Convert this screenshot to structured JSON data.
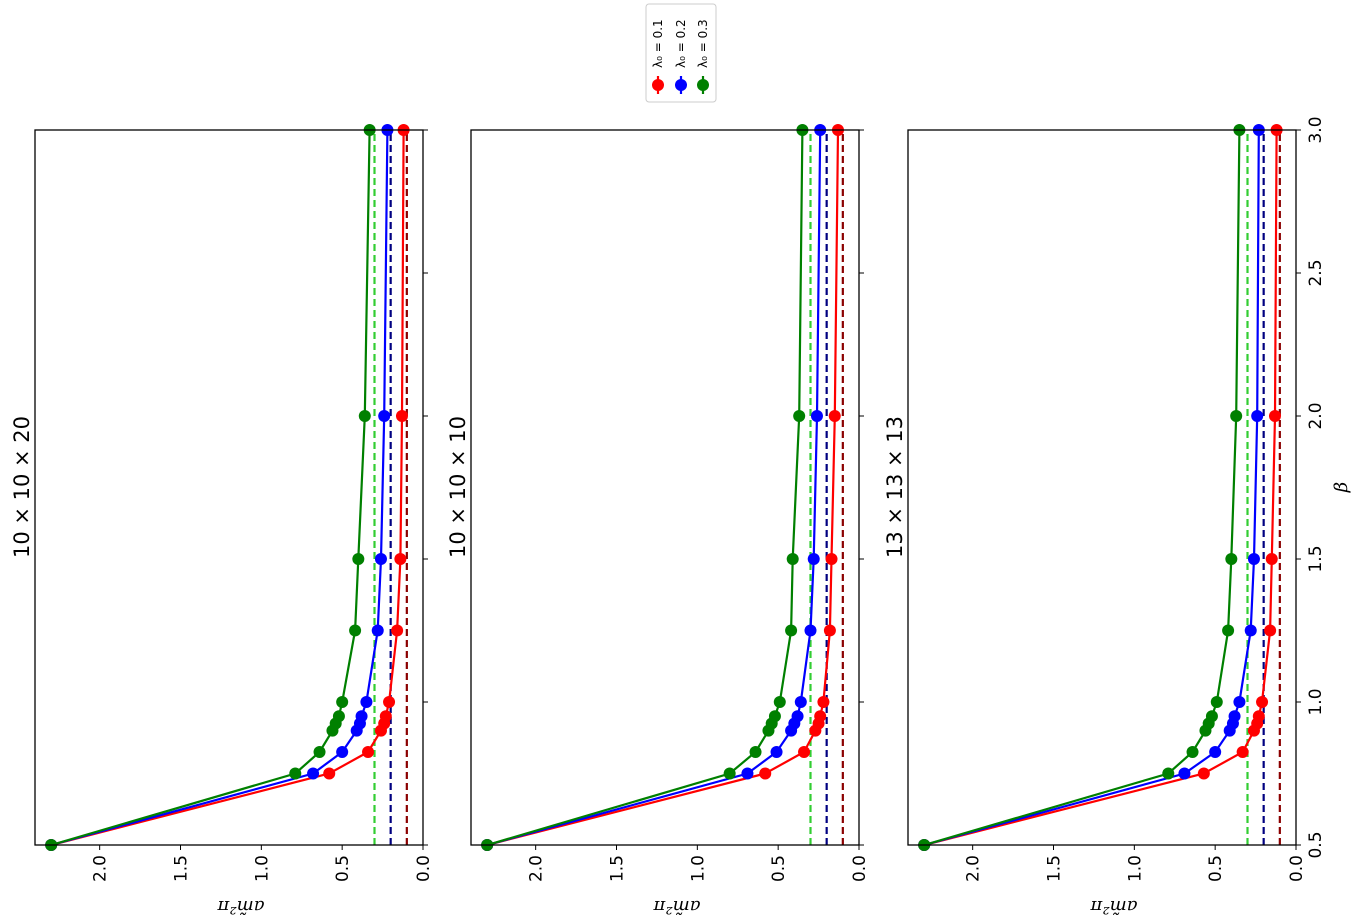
{
  "chart_data": [
    {
      "type": "line",
      "title": "10 × 10 × 20",
      "xlabel": "β",
      "ylabel": "am̃²π",
      "xlim": [
        0.5,
        3.0
      ],
      "ylim": [
        2.4,
        0.0
      ],
      "x_ticks": [
        "0.5",
        "1.0",
        "1.5",
        "2.0",
        "2.5",
        "3.0"
      ],
      "y_ticks": [
        "2.0",
        "1.5",
        "1.0",
        "0.5",
        "0.0"
      ],
      "x": [
        0.5,
        0.75,
        0.825,
        0.9,
        0.925,
        0.95,
        1.0,
        1.25,
        1.5,
        2.0,
        3.0
      ],
      "series": [
        {
          "name": "λ₀ = 0.1",
          "color": "#ff0000",
          "values": [
            2.3,
            0.58,
            0.34,
            0.26,
            0.24,
            0.23,
            0.21,
            0.16,
            0.14,
            0.13,
            0.12
          ]
        },
        {
          "name": "λ₀ = 0.2",
          "color": "#0000ff",
          "values": [
            2.3,
            0.68,
            0.5,
            0.41,
            0.39,
            0.38,
            0.35,
            0.28,
            0.26,
            0.24,
            0.22
          ]
        },
        {
          "name": "λ₀ = 0.3",
          "color": "#008000",
          "values": [
            2.3,
            0.79,
            0.64,
            0.56,
            0.54,
            0.52,
            0.5,
            0.42,
            0.4,
            0.36,
            0.33
          ]
        }
      ],
      "hlines": [
        {
          "value": 0.1,
          "color": "#8b0000"
        },
        {
          "value": 0.2,
          "color": "#000080"
        },
        {
          "value": 0.3,
          "color": "#32cd32"
        }
      ]
    },
    {
      "type": "line",
      "title": "10 × 10 × 10",
      "xlabel": "β",
      "ylabel": "am̃²π",
      "xlim": [
        0.5,
        3.0
      ],
      "ylim": [
        2.4,
        0.0
      ],
      "x_ticks": [
        "0.5",
        "1.0",
        "1.5",
        "2.0",
        "2.5",
        "3.0"
      ],
      "y_ticks": [
        "2.0",
        "1.5",
        "1.0",
        "0.5",
        "0.0"
      ],
      "x": [
        0.5,
        0.75,
        0.825,
        0.9,
        0.925,
        0.95,
        1.0,
        1.25,
        1.5,
        2.0,
        3.0
      ],
      "series": [
        {
          "name": "λ₀ = 0.1",
          "color": "#ff0000",
          "values": [
            2.3,
            0.58,
            0.34,
            0.27,
            0.25,
            0.24,
            0.22,
            0.18,
            0.17,
            0.15,
            0.13
          ]
        },
        {
          "name": "λ₀ = 0.2",
          "color": "#0000ff",
          "values": [
            2.3,
            0.69,
            0.51,
            0.42,
            0.4,
            0.38,
            0.36,
            0.3,
            0.28,
            0.26,
            0.24
          ]
        },
        {
          "name": "λ₀ = 0.3",
          "color": "#008000",
          "values": [
            2.3,
            0.8,
            0.64,
            0.56,
            0.54,
            0.52,
            0.49,
            0.42,
            0.41,
            0.37,
            0.35
          ]
        }
      ],
      "hlines": [
        {
          "value": 0.1,
          "color": "#8b0000"
        },
        {
          "value": 0.2,
          "color": "#000080"
        },
        {
          "value": 0.3,
          "color": "#32cd32"
        }
      ]
    },
    {
      "type": "line",
      "title": "13 × 13 × 13",
      "xlabel": "β",
      "ylabel": "am̃²π",
      "xlim": [
        0.5,
        3.0
      ],
      "ylim": [
        2.4,
        0.0
      ],
      "x_ticks": [
        "0.5",
        "1.0",
        "1.5",
        "2.0",
        "2.5",
        "3.0"
      ],
      "y_ticks": [
        "2.0",
        "1.5",
        "1.0",
        "0.5",
        "0.0"
      ],
      "x": [
        0.5,
        0.75,
        0.825,
        0.9,
        0.925,
        0.95,
        1.0,
        1.25,
        1.5,
        2.0,
        3.0
      ],
      "series": [
        {
          "name": "λ₀ = 0.1",
          "color": "#ff0000",
          "values": [
            2.3,
            0.57,
            0.33,
            0.26,
            0.24,
            0.23,
            0.21,
            0.16,
            0.15,
            0.13,
            0.12
          ]
        },
        {
          "name": "λ₀ = 0.2",
          "color": "#0000ff",
          "values": [
            2.3,
            0.69,
            0.5,
            0.41,
            0.39,
            0.38,
            0.35,
            0.28,
            0.26,
            0.24,
            0.23
          ]
        },
        {
          "name": "λ₀ = 0.3",
          "color": "#008000",
          "values": [
            2.3,
            0.79,
            0.64,
            0.56,
            0.54,
            0.52,
            0.49,
            0.42,
            0.4,
            0.37,
            0.35
          ]
        }
      ],
      "hlines": [
        {
          "value": 0.1,
          "color": "#8b0000"
        },
        {
          "value": 0.2,
          "color": "#000080"
        },
        {
          "value": 0.3,
          "color": "#32cd32"
        }
      ]
    }
  ],
  "legend": {
    "placement": "top-center",
    "entries": [
      {
        "label": "λ₀ = 0.1",
        "color": "#ff0000"
      },
      {
        "label": "λ₀ = 0.2",
        "color": "#0000ff"
      },
      {
        "label": "λ₀ = 0.3",
        "color": "#008000"
      }
    ]
  }
}
